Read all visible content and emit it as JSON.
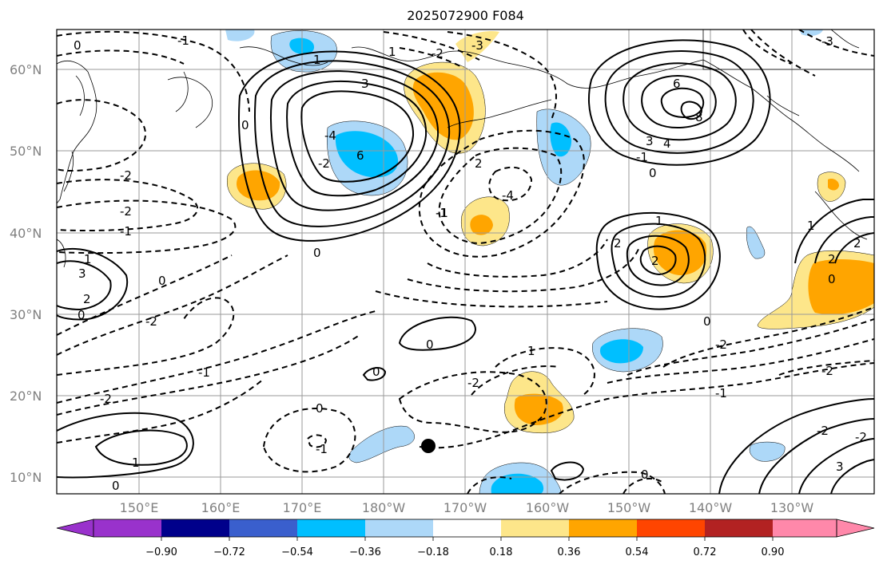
{
  "map": {
    "title": "2025072900 F084",
    "lat_labels": [
      "60°N",
      "50°N",
      "40°N",
      "30°N",
      "20°N",
      "10°N"
    ],
    "lon_labels": [
      "150°E",
      "160°E",
      "170°E",
      "180°W",
      "170°W",
      "160°W",
      "150°W",
      "140°W",
      "130°W"
    ],
    "contour_labels": [
      "0",
      "-1",
      "-2",
      "-3",
      "-2",
      "1",
      "3",
      "6",
      "-4",
      "-2",
      "-1",
      "-4",
      "0",
      "6",
      "8",
      "4",
      "3",
      "-1",
      "0",
      "1",
      "2",
      "2",
      "-1",
      "0",
      "-2",
      "-1",
      "1",
      "2",
      "3",
      "0",
      "-2",
      "0",
      "-1",
      "1",
      "0",
      "-1",
      "-1",
      "0",
      "0",
      "2",
      "-2",
      "1",
      "-2",
      "-2",
      "0",
      "0",
      "1",
      "2",
      "0",
      "3",
      "-2",
      "-2",
      "-2",
      "0",
      "-3",
      "1",
      "2"
    ],
    "colors": {
      "contour": "#000000",
      "grid": "#9a9a9a",
      "coast": "#000000",
      "marker": "#000000"
    }
  },
  "colorbar": {
    "tick_labels": [
      "−0.90",
      "−0.72",
      "−0.54",
      "−0.36",
      "−0.18",
      "0.18",
      "0.36",
      "0.54",
      "0.72",
      "0.90"
    ],
    "colors": [
      "#9932cc",
      "#00008b",
      "#3a5fcd",
      "#00bfff",
      "#add8f8",
      "#ffffff",
      "#fde68a",
      "#ffa500",
      "#ff4500",
      "#b22222",
      "#ff88aa"
    ]
  }
}
